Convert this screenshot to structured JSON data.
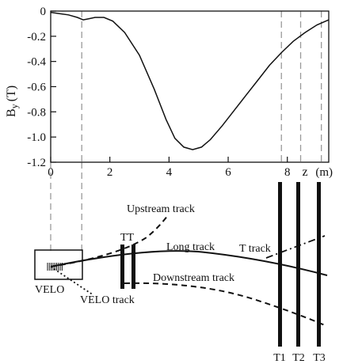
{
  "chart_data": {
    "type": "line",
    "ylabel": "B",
    "ylabel_sub": "y",
    "ylabel_unit": "(T)",
    "xlabel": "z",
    "xunit": "(m)",
    "xlim": [
      0,
      9.4
    ],
    "ylim": [
      -1.2,
      0
    ],
    "grid": false,
    "x_ticks": [
      "0",
      "2",
      "4",
      "6",
      "8"
    ],
    "y_ticks": [
      "0",
      "-0.2",
      "-0.4",
      "-0.6",
      "-0.8",
      "-1.0",
      "-1.2"
    ],
    "series": [
      {
        "x": [
          0,
          0.3,
          0.6,
          0.9,
          1.1,
          1.3,
          1.5,
          1.8,
          2.1,
          2.5,
          3.0,
          3.5,
          3.9,
          4.2,
          4.5,
          4.8,
          5.1,
          5.4,
          5.8,
          6.2,
          6.6,
          7.0,
          7.4,
          7.8,
          8.2,
          8.6,
          9.0,
          9.4
        ],
        "y": [
          -0.01,
          -0.02,
          -0.03,
          -0.05,
          -0.07,
          -0.06,
          -0.05,
          -0.05,
          -0.08,
          -0.17,
          -0.35,
          -0.62,
          -0.86,
          -1.01,
          -1.08,
          -1.1,
          -1.08,
          -1.02,
          -0.91,
          -0.79,
          -0.67,
          -0.55,
          -0.43,
          -0.33,
          -0.24,
          -0.17,
          -0.11,
          -0.07
        ]
      }
    ],
    "vlines_x": [
      1.05,
      7.8,
      8.45,
      9.15
    ]
  },
  "labels": {
    "upstream": "Upstream track",
    "tt": "TT",
    "long": "Long track",
    "ttrack": "T track",
    "downstream": "Downstream track",
    "velo": "VELO",
    "velo_track": "VELO track",
    "t1": "T1",
    "t2": "T2",
    "t3": "T3"
  }
}
